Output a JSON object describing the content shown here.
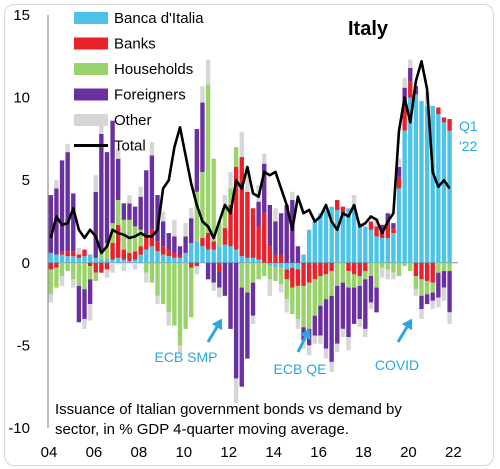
{
  "colors": {
    "banca": "#4ec3e8",
    "banks": "#e8212b",
    "households": "#9ad26b",
    "foreigners": "#6b30a0",
    "other": "#d6d6d6",
    "total": "#000000",
    "annotation": "#29a8e0"
  },
  "chart_data": {
    "type": "bar",
    "title": "Italy",
    "caption_lines": [
      "Issuance of Italian government bonds vs demand by",
      "sector, in % GDP 4-quarter moving average."
    ],
    "ylim": [
      -10,
      15
    ],
    "yticks": [
      15,
      10,
      5,
      0,
      -5,
      -10
    ],
    "xticks": [
      "04",
      "06",
      "08",
      "10",
      "12",
      "14",
      "16",
      "18",
      "20",
      "22"
    ],
    "xtick_quarters": [
      0,
      8,
      16,
      24,
      32,
      40,
      48,
      56,
      64,
      72
    ],
    "xlim_quarters": [
      0,
      73
    ],
    "stacked": true,
    "legend": [
      "Banca d'Italia",
      "Banks",
      "Households",
      "Foreigners",
      "Other",
      "Total"
    ],
    "legend_position": "top-left",
    "annotations": [
      {
        "label": "ECB SMP",
        "quarter": 31
      },
      {
        "label": "ECB QE",
        "quarter": 45
      },
      {
        "label": "COVID",
        "quarter": 62
      },
      {
        "label_lines": [
          "Q1",
          "'22"
        ],
        "quarter": 72
      }
    ],
    "series": [
      {
        "name": "Banca d'Italia",
        "values": [
          0.6,
          0.5,
          0.5,
          0.4,
          0.4,
          0.3,
          0.4,
          0.5,
          0.3,
          0.2,
          0.2,
          0.2,
          0.3,
          0.2,
          0.1,
          0.2,
          0.5,
          0.8,
          1.0,
          0.7,
          0.5,
          0.4,
          0.3,
          0.3,
          0.6,
          1.2,
          1.3,
          1.0,
          0.8,
          0.8,
          1.0,
          1.1,
          1.0,
          0.8,
          0.4,
          0.3,
          0.3,
          0.2,
          0.0,
          -0.2,
          -0.3,
          -0.3,
          -0.4,
          -0.3,
          -0.4,
          0.5,
          2.0,
          2.5,
          3.0,
          3.2,
          3.4,
          3.2,
          3.0,
          3.3,
          3.5,
          2.4,
          2.2,
          2.0,
          1.6,
          1.5,
          1.5,
          1.8,
          4.5,
          8.0,
          10.0,
          10.2,
          9.8,
          9.5,
          9.5,
          9.0,
          8.5,
          8.0
        ]
      },
      {
        "name": "Banks",
        "values": [
          -0.4,
          -0.3,
          0.2,
          0.3,
          0.3,
          0.2,
          0.4,
          -0.2,
          -0.6,
          -0.6,
          -0.4,
          1.0,
          2.0,
          0.6,
          0.5,
          0.5,
          0.5,
          0.8,
          1.0,
          0.6,
          0.5,
          0.4,
          0.3,
          0.2,
          0.0,
          -0.3,
          -0.2,
          0.5,
          1.0,
          0.5,
          -0.5,
          1.0,
          2.5,
          5.0,
          6.0,
          4.0,
          3.0,
          2.0,
          3.0,
          1.0,
          0.5,
          0.5,
          -0.6,
          -1.2,
          -1.0,
          -1.4,
          -1.2,
          -1.0,
          -0.8,
          -0.7,
          -0.5,
          0.6,
          0.4,
          -0.5,
          -0.7,
          -0.8,
          -0.5,
          0.5,
          0.6,
          0.4,
          1.0,
          0.3,
          0.7,
          1.6,
          1.0,
          -0.8,
          -1.0,
          -1.1,
          -1.2,
          0.4,
          0.3,
          0.7
        ]
      },
      {
        "name": "Households",
        "values": [
          -1.5,
          -1.2,
          -0.8,
          -0.5,
          -1.0,
          -1.4,
          -1.6,
          -0.8,
          -0.5,
          0.6,
          1.0,
          1.2,
          1.5,
          1.8,
          2.0,
          1.5,
          1.0,
          -0.6,
          -1.2,
          -2.0,
          -2.5,
          -3.0,
          -3.8,
          -5.0,
          -4.0,
          -3.0,
          3.0,
          4.0,
          9.0,
          5.0,
          1.5,
          1.2,
          1.0,
          1.2,
          -1.5,
          -1.8,
          -1.2,
          -1.0,
          -0.8,
          -0.8,
          -0.8,
          -1.0,
          -1.2,
          -1.6,
          -2.0,
          -2.5,
          -2.8,
          -2.2,
          -1.8,
          -1.5,
          -1.5,
          -1.4,
          -1.2,
          -1.0,
          -0.8,
          -0.6,
          -0.5,
          -0.8,
          -1.5,
          -0.3,
          -0.4,
          -0.6,
          -0.8,
          -0.2,
          -0.5,
          -0.8,
          -1.0,
          -0.8,
          -0.6,
          -0.6,
          -0.5,
          -0.5
        ]
      },
      {
        "name": "Foreigners",
        "values": [
          3.5,
          4.0,
          5.5,
          6.0,
          3.5,
          -2.2,
          -1.8,
          -1.5,
          4.0,
          7.0,
          5.5,
          6.2,
          2.5,
          1.0,
          1.0,
          1.2,
          2.0,
          4.0,
          4.5,
          2.8,
          1.5,
          1.0,
          1.0,
          0.5,
          1.0,
          1.5,
          3.8,
          4.2,
          -1.0,
          -1.2,
          -1.0,
          -2.0,
          -4.0,
          -7.0,
          -6.0,
          -4.0,
          -2.0,
          1.5,
          3.0,
          2.5,
          2.0,
          2.5,
          3.5,
          3.8,
          1.0,
          -0.8,
          -1.0,
          -1.2,
          -1.8,
          -3.0,
          -4.0,
          -3.5,
          -2.8,
          -3.0,
          -2.2,
          -2.0,
          -3.0,
          -1.6,
          -1.5,
          0.4,
          0.5,
          0.3,
          0.6,
          1.0,
          0.8,
          0.5,
          -0.8,
          -0.6,
          -0.5,
          -1.5,
          -1.0,
          -2.5
        ]
      },
      {
        "name": "Other",
        "values": [
          -0.5,
          0.5,
          -0.6,
          0.5,
          -0.5,
          0.4,
          -0.6,
          -1.0,
          1.0,
          0.8,
          -0.5,
          -0.6,
          0.6,
          -0.5,
          0.5,
          -0.4,
          0.6,
          -0.6,
          0.8,
          -0.5,
          0.6,
          -0.8,
          1.0,
          -0.5,
          0.8,
          0.6,
          -0.5,
          1.0,
          1.5,
          -0.5,
          -0.6,
          0.8,
          1.0,
          -1.5,
          1.5,
          1.5,
          -0.5,
          1.0,
          0.6,
          -1.0,
          0.8,
          -0.5,
          -0.8,
          0.5,
          -0.6,
          -0.5,
          -0.6,
          -0.5,
          -0.5,
          -0.6,
          -0.6,
          -0.5,
          -0.5,
          -0.8,
          0.6,
          -0.5,
          -0.5,
          -0.4,
          0.5,
          -0.6,
          -0.6,
          -0.4,
          0.5,
          0.6,
          0.5,
          -0.4,
          -0.6,
          0.8,
          -0.5,
          -0.6,
          -0.8,
          -0.7
        ]
      },
      {
        "name": "Total",
        "type": "line",
        "values": [
          1.5,
          2.8,
          2.3,
          2.4,
          3.3,
          2.0,
          1.5,
          2.0,
          1.6,
          0.6,
          1.0,
          2.0,
          1.8,
          1.7,
          1.5,
          1.6,
          1.8,
          1.6,
          1.6,
          2.0,
          4.5,
          5.0,
          7.0,
          8.2,
          6.5,
          4.8,
          3.5,
          2.5,
          2.2,
          1.5,
          2.5,
          3.5,
          3.0,
          5.0,
          4.5,
          5.8,
          4.2,
          4.0,
          5.5,
          5.3,
          5.5,
          4.5,
          3.5,
          2.0,
          4.0,
          3.0,
          3.2,
          2.5,
          2.8,
          3.5,
          2.5,
          2.0,
          3.0,
          2.8,
          3.5,
          2.2,
          2.4,
          2.8,
          2.6,
          1.8,
          2.5,
          3.0,
          8.0,
          10.0,
          8.5,
          11.0,
          12.2,
          10.5,
          5.5,
          4.6,
          5.0,
          4.5
        ]
      }
    ]
  }
}
